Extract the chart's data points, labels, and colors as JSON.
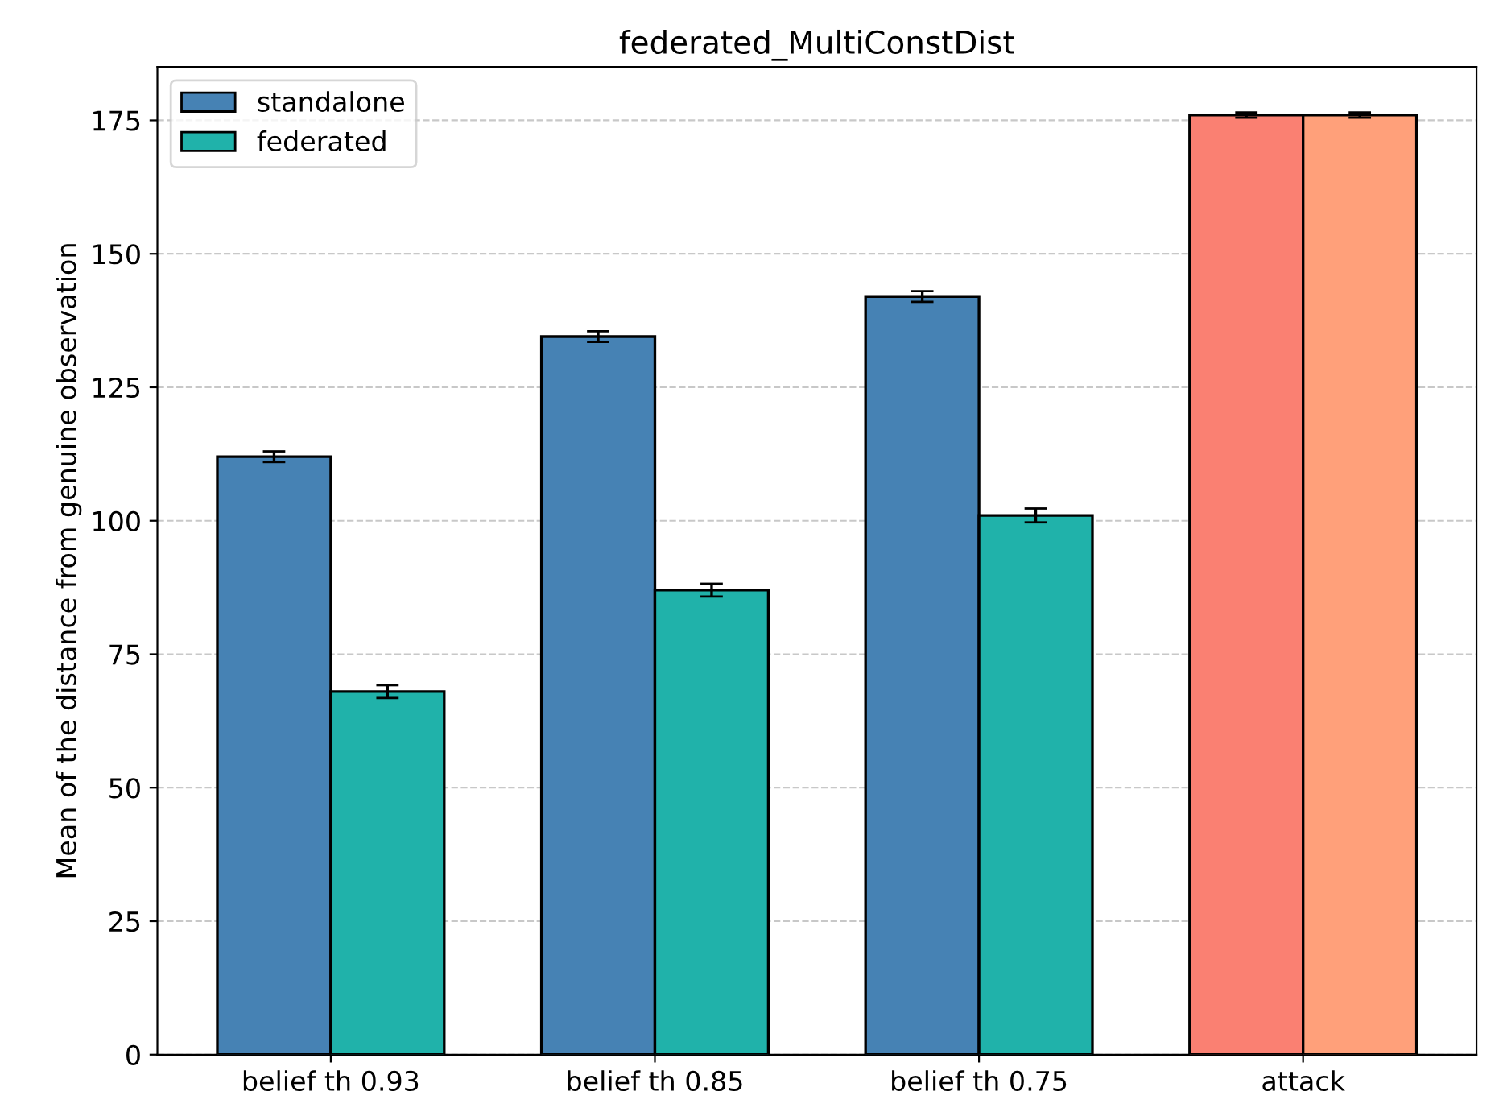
{
  "chart_data": {
    "type": "bar",
    "title": "federated_MultiConstDist",
    "ylabel": "Mean of the distance from genuine observation",
    "categories": [
      "belief th 0.93",
      "belief th 0.85",
      "belief th 0.75",
      "attack"
    ],
    "series": [
      {
        "name": "standalone",
        "color": "#4682b4",
        "colors": [
          "#4682b4",
          "#4682b4",
          "#4682b4",
          "#fa8072"
        ],
        "values": [
          112,
          134.5,
          142,
          176
        ],
        "errors": [
          1,
          1,
          1,
          0.5
        ]
      },
      {
        "name": "federated",
        "color": "#20b2aa",
        "colors": [
          "#20b2aa",
          "#20b2aa",
          "#20b2aa",
          "#ffa07a"
        ],
        "values": [
          68,
          87,
          101,
          176
        ],
        "errors": [
          1.2,
          1.2,
          1.3,
          0.5
        ]
      }
    ],
    "ylim": [
      0,
      185
    ],
    "yticks": [
      0,
      25,
      50,
      75,
      100,
      125,
      150,
      175
    ],
    "grid": "y",
    "legend": "top left"
  }
}
